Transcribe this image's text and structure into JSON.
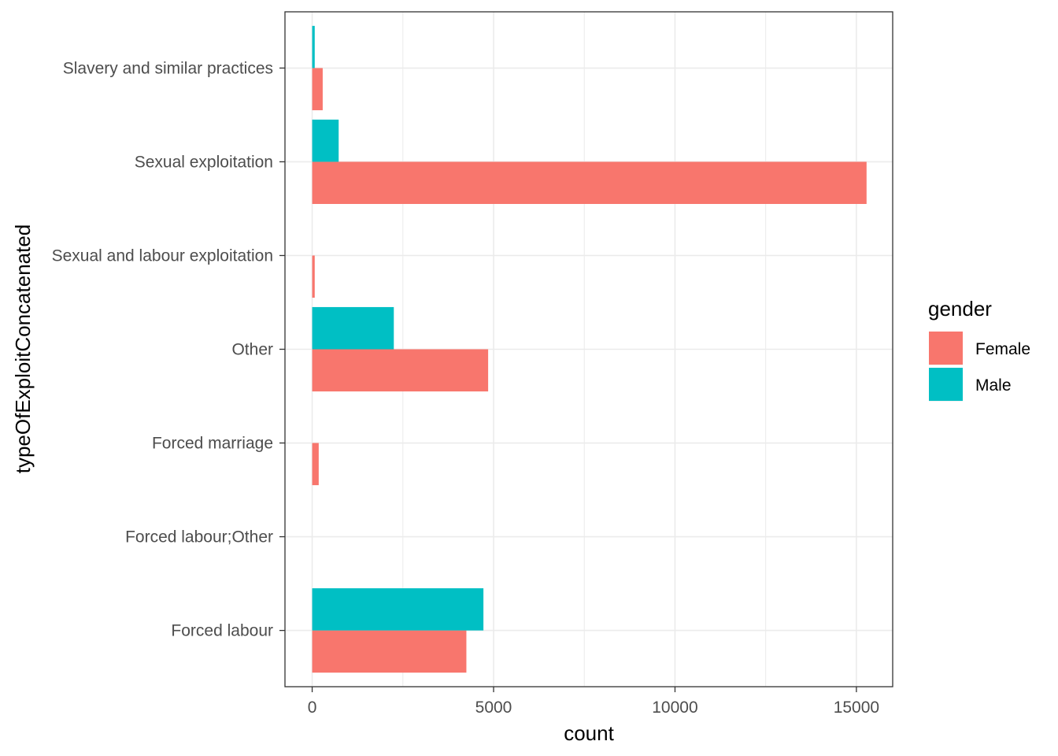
{
  "chart_data": {
    "type": "bar",
    "orientation": "horizontal",
    "position": "dodge",
    "categories": [
      "Forced labour",
      "Forced labour;Other",
      "Forced marriage",
      "Other",
      "Sexual and labour exploitation",
      "Sexual exploitation",
      "Slavery and similar practices"
    ],
    "series": [
      {
        "name": "Female",
        "color": "#F8766D",
        "values": [
          4250,
          0,
          180,
          4850,
          70,
          15280,
          290
        ]
      },
      {
        "name": "Male",
        "color": "#00BFC4",
        "values": [
          4720,
          0,
          0,
          2250,
          0,
          730,
          70
        ]
      }
    ],
    "xlabel": "count",
    "ylabel": "typeOfExploitConcatenated",
    "xlim": [
      -750,
      16000
    ],
    "xticks": [
      0,
      5000,
      10000,
      15000
    ],
    "xtick_labels": [
      "0",
      "5000",
      "10000",
      "15000"
    ],
    "grid": true,
    "legend": {
      "title": "gender",
      "position": "right",
      "entries": [
        "Female",
        "Male"
      ]
    }
  }
}
